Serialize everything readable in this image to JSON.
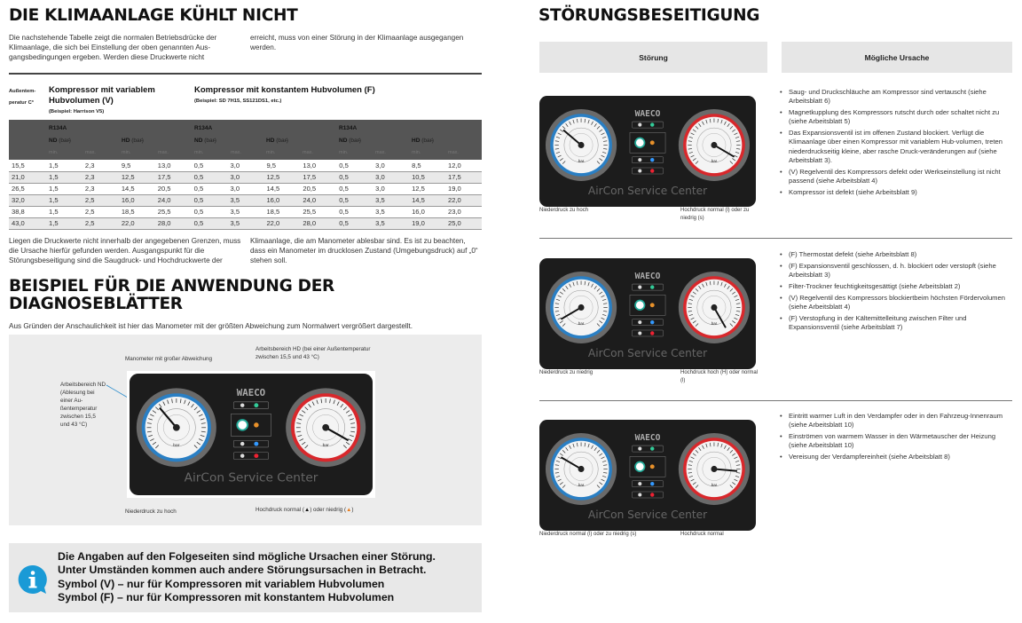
{
  "left": {
    "title": "DIE KLIMAANLAGE KÜHLT NICHT",
    "intro_col1": "Die nachstehende Tabelle zeigt die normalen Betriebsdrücke der Klimaanlage, die sich bei Einstellung der oben genannten Aus-gangsbedingungen ergeben. Werden diese Druckwerte nicht",
    "intro_col2": "erreicht, muss von einer Störung in der Klimaanlage ausgegangen werden.",
    "table": {
      "temp_header": "Außentem-peratur C°",
      "group_v_title": "Kompressor mit variablem Hubvolumen (V)",
      "group_v_example": "(Beispiel: Harrison V5)",
      "group_f_title": "Kompressor mit konstantem Hubvolumen (F)",
      "group_f_example": "(Beispiel: SD 7H15, SS121DS1, etc.)",
      "refrigerant": "R134A",
      "nd_label": "ND",
      "hd_label": "HD",
      "unit": "(bar̵)",
      "min": "min.",
      "max": "max.",
      "rows": [
        [
          "15,5",
          "1,5",
          "2,3",
          "9,5",
          "13,0",
          "0,5",
          "3,0",
          "9,5",
          "13,0",
          "0,5",
          "3,0",
          "8,5",
          "12,0"
        ],
        [
          "21,0",
          "1,5",
          "2,3",
          "12,5",
          "17,5",
          "0,5",
          "3,0",
          "12,5",
          "17,5",
          "0,5",
          "3,0",
          "10,5",
          "17,5"
        ],
        [
          "26,5",
          "1,5",
          "2,3",
          "14,5",
          "20,5",
          "0,5",
          "3,0",
          "14,5",
          "20,5",
          "0,5",
          "3,0",
          "12,5",
          "19,0"
        ],
        [
          "32,0",
          "1,5",
          "2,5",
          "16,0",
          "24,0",
          "0,5",
          "3,5",
          "16,0",
          "24,0",
          "0,5",
          "3,5",
          "14,5",
          "22,0"
        ],
        [
          "38,8",
          "1,5",
          "2,5",
          "18,5",
          "25,5",
          "0,5",
          "3,5",
          "18,5",
          "25,5",
          "0,5",
          "3,5",
          "16,0",
          "23,0"
        ],
        [
          "43,0",
          "1,5",
          "2,5",
          "22,0",
          "28,0",
          "0,5",
          "3,5",
          "22,0",
          "28,0",
          "0,5",
          "3,5",
          "19,0",
          "25,0"
        ]
      ]
    },
    "after_col1": "Liegen die Druckwerte nicht innerhalb der angegebenen Grenzen, muss die Ursache hierfür gefunden werden. Ausgangspunkt für die Störungsbeseitigung sind die Saugdruck- und Hochdruckwerte der",
    "after_col2": "Klimaanlage, die am Manometer ablesbar sind. Es ist zu beachten, dass ein Manometer im drucklosen Zustand (Umgebungsdruck) auf „0“ stehen soll.",
    "example_title_1": "BEISPIEL FÜR DIE ANWENDUNG DER",
    "example_title_2": "DIAGNOSEBLÄTTER",
    "example_text": "Aus Gründen der Anschaulichkeit ist hier das Manometer mit der größten Abweichung zum Normalwert vergrößert dargestellt.",
    "example": {
      "label_big_deviation": "Manometer mit großer Abweichung",
      "label_hd_range": "Arbeitsbereich HD (bei einer Außentemperatur zwischen 15,5 und 43 °C)",
      "label_nd_range": "Arbeitsbereich ND (Ablesung bei einer Au-ßentemperatur zwischen 15,5 und 43 °C)",
      "label_nd": "Niederdruck zu hoch",
      "label_hd_prefix": "Hochdruck normal (",
      "label_hd_mid": ") oder niedrig (",
      "label_hd_suffix": ")"
    },
    "info_lines": [
      "Die Angaben auf den Folgeseiten sind mögliche Ursachen einer Störung.",
      "Unter Umständen kommen auch andere Störungsursachen in Betracht.",
      "Symbol (V) – nur für Kompressoren mit variablem Hubvolumen",
      "Symbol (F) – nur für Kompressoren mit konstantem Hubvolumen"
    ]
  },
  "panel": {
    "brand": "WAECO",
    "name": "AirCon Service Center",
    "unit": "bar"
  },
  "right": {
    "title": "STÖRUNGSBESEITIGUNG",
    "col_fault": "Störung",
    "col_cause": "Mögliche Ursache",
    "faults": [
      {
        "nd": "Niederdruck zu hoch",
        "hd": "Hochdruck normal (l) oder zu niedrig (s)",
        "causes": [
          "Saug- und Druckschläuche am Kompressor sind vertauscht (siehe Arbeitsblatt 6)",
          "Magnetkupplung des Kompressors rutscht durch oder schaltet nicht zu (siehe Arbeitsblatt 5)",
          "Das Expansionsventil ist im offenen Zustand blockiert. Verfügt die Klimaanlage über einen Kompressor mit variablem Hub-volumen, treten niederdruckseitig kleine, aber rasche Druck-veränderungen auf (siehe Arbeitsblatt 3).",
          "(V) Regelventil des Kompressors defekt oder Werkseinstellung ist nicht passend (siehe Arbeitsblatt 4)",
          "Kompressor ist defekt (siehe Arbeitsblatt 9)"
        ]
      },
      {
        "nd": "Niederdruck zu niedrig",
        "hd": "Hochdruck hoch (H) oder normal (l)",
        "causes": [
          "(F) Thermostat defekt (siehe Arbeitsblatt 8)",
          "(F) Expansionsventil geschlossen, d. h. blockiert oder verstopft (siehe Arbeitsblatt 3)",
          "Filter-Trockner feuchtigkeitsgesättigt (siehe Arbeitsblatt 2)",
          "(V) Regelventil des Kompressors blockiertbeim höchsten Fördervolumen (siehe Arbeitsblatt 4)",
          "(F) Verstopfung in der Kältemittelleitung zwischen Filter und Expansionsventil (siehe Arbeitsblatt 7)"
        ]
      },
      {
        "nd": "Niederdruck normal (l) oder zu niedrig (s)",
        "hd": "Hochdruck normal",
        "causes": [
          "Eintritt warmer Luft in den Verdampfer oder in den Fahrzeug-Innenraum (siehe Arbeitsblatt 10)",
          "Einströmen von warmem Wasser in den Wärmetauscher der Heizung (siehe Arbeitsblatt 10)",
          "Vereisung der Verdampfereinheit (siehe Arbeitsblatt 8)"
        ]
      }
    ]
  },
  "colors": {
    "info_blue": "#1a9ad6",
    "gauge_blue": "#2a7fc4",
    "gauge_red": "#d8282c",
    "panel_black": "#1c1c1c",
    "warning_orange": "#e87d1e"
  }
}
